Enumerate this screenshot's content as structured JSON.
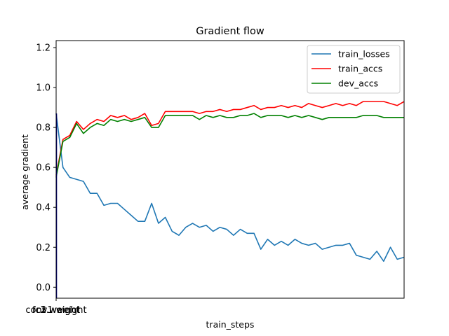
{
  "chart_data": {
    "type": "line",
    "title": "Gradient flow",
    "xlabel": "train_steps",
    "ylabel": "average gradient",
    "ylim": [
      -0.055,
      1.235
    ],
    "yticks": [
      "0.0",
      "0.2",
      "0.4",
      "0.6",
      "0.8",
      "1.0",
      "1.2"
    ],
    "ytick_values": [
      0.0,
      0.2,
      0.4,
      0.6,
      0.8,
      1.0,
      1.2
    ],
    "xtick_labels": [
      "conv1.weight",
      "fc1.weight",
      "fc2.weight",
      "fc3.weight"
    ],
    "legend_position": "upper right",
    "grid": false,
    "series": [
      {
        "name": "train_losses",
        "color": "#1f77b4",
        "values": [
          0.87,
          0.6,
          0.55,
          0.54,
          0.53,
          0.47,
          0.47,
          0.41,
          0.42,
          0.42,
          0.39,
          0.36,
          0.33,
          0.33,
          0.42,
          0.32,
          0.35,
          0.28,
          0.26,
          0.3,
          0.32,
          0.3,
          0.31,
          0.28,
          0.3,
          0.29,
          0.26,
          0.29,
          0.27,
          0.27,
          0.19,
          0.24,
          0.21,
          0.23,
          0.21,
          0.24,
          0.22,
          0.21,
          0.22,
          0.19,
          0.2,
          0.21,
          0.21,
          0.22,
          0.16,
          0.15,
          0.14,
          0.18,
          0.13,
          0.2,
          0.14,
          0.15
        ]
      },
      {
        "name": "train_accs",
        "color": "#ff0000",
        "values": [
          0.56,
          0.74,
          0.76,
          0.83,
          0.79,
          0.82,
          0.84,
          0.83,
          0.86,
          0.85,
          0.86,
          0.84,
          0.85,
          0.87,
          0.81,
          0.82,
          0.88,
          0.88,
          0.88,
          0.88,
          0.88,
          0.87,
          0.88,
          0.88,
          0.89,
          0.88,
          0.89,
          0.89,
          0.9,
          0.91,
          0.89,
          0.9,
          0.9,
          0.91,
          0.9,
          0.91,
          0.9,
          0.92,
          0.91,
          0.9,
          0.91,
          0.92,
          0.91,
          0.92,
          0.91,
          0.93,
          0.93,
          0.93,
          0.93,
          0.92,
          0.91,
          0.93
        ]
      },
      {
        "name": "dev_accs",
        "color": "#008000",
        "values": [
          0.55,
          0.73,
          0.75,
          0.82,
          0.77,
          0.8,
          0.82,
          0.81,
          0.84,
          0.83,
          0.84,
          0.83,
          0.84,
          0.85,
          0.8,
          0.8,
          0.86,
          0.86,
          0.86,
          0.86,
          0.86,
          0.84,
          0.86,
          0.85,
          0.86,
          0.85,
          0.85,
          0.86,
          0.86,
          0.87,
          0.85,
          0.86,
          0.86,
          0.86,
          0.85,
          0.86,
          0.85,
          0.86,
          0.85,
          0.84,
          0.85,
          0.85,
          0.85,
          0.85,
          0.85,
          0.86,
          0.86,
          0.86,
          0.85,
          0.85,
          0.85,
          0.85
        ]
      }
    ],
    "overlay_line": {
      "color": "#00008b"
    }
  }
}
